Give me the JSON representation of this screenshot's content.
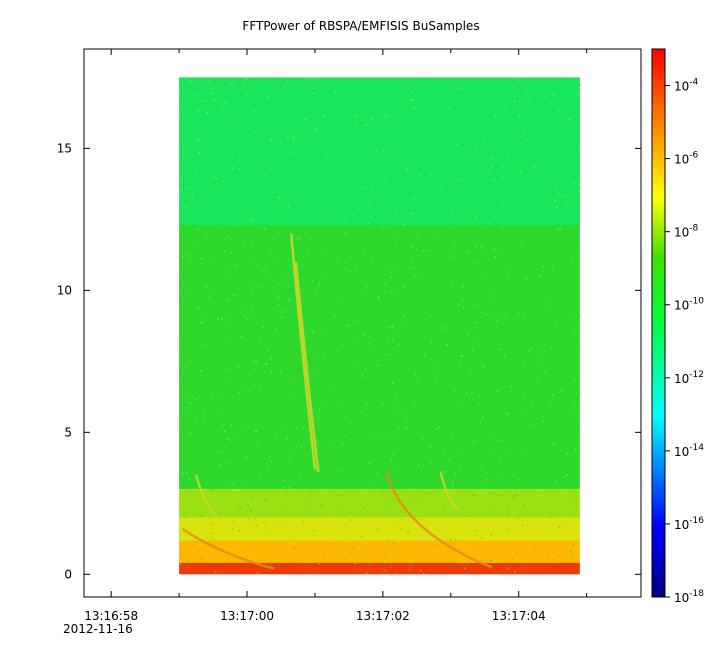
{
  "chart_data": {
    "type": "heatmap",
    "title": "FFTPower of RBSPA/EMFISIS  BuSamples",
    "xlabel": "",
    "ylabel": "",
    "x_ticks": [
      "13:16:58",
      "13:17:00",
      "13:17:02",
      "13:17:04"
    ],
    "x_date_label": "2012-11-16",
    "xlim": [
      "13:16:57.6",
      "13:17:05.8"
    ],
    "data_time_range": [
      "13:16:59.0",
      "13:17:04.9"
    ],
    "y_ticks": [
      0,
      5,
      10,
      15
    ],
    "ylim": [
      -0.8,
      18.5
    ],
    "data_y_range": [
      0,
      17.5
    ],
    "colorbar": {
      "scale": "log",
      "range": [
        1e-18,
        0.001
      ],
      "tick_bases": [
        "10",
        "10",
        "10",
        "10",
        "10",
        "10",
        "10",
        "10"
      ],
      "tick_exponents": [
        "-4",
        "-6",
        "-8",
        "-10",
        "-12",
        "-14",
        "-16",
        "-18"
      ],
      "tick_values": [
        0.0001,
        1e-06,
        1e-08,
        1e-10,
        1e-12,
        1e-14,
        1e-16,
        1e-18
      ],
      "colormap": "rainbow (blue-cyan-green-yellow-red)"
    },
    "bands": [
      {
        "y_range": [
          12.3,
          17.5
        ],
        "power": 1e-12,
        "color": "#19e65a"
      },
      {
        "y_range": [
          3.0,
          12.3
        ],
        "power": 1e-10,
        "color": "#2ed82c"
      },
      {
        "y_range": [
          2.0,
          3.0
        ],
        "power": 1e-09,
        "color": "#9be013"
      },
      {
        "y_range": [
          1.2,
          2.0
        ],
        "power": 1e-08,
        "color": "#d8e40c"
      },
      {
        "y_range": [
          0.4,
          1.2
        ],
        "power": 1e-07,
        "color": "#ffb800"
      },
      {
        "y_range": [
          0.0,
          0.4
        ],
        "power": 1e-05,
        "color": "#ee3a08"
      }
    ],
    "features": [
      {
        "kind": "chorus-streak",
        "points": [
          [
            "13:17:00.65",
            12.0
          ],
          [
            "13:17:00.80",
            8.0
          ],
          [
            "13:17:01.00",
            3.7
          ]
        ]
      },
      {
        "kind": "chorus-streak",
        "points": [
          [
            "13:17:00.72",
            11.0
          ],
          [
            "13:17:00.88",
            7.0
          ],
          [
            "13:17:01.05",
            3.6
          ]
        ]
      },
      {
        "kind": "whistler-arc",
        "points": [
          [
            "13:17:02.05",
            3.6
          ],
          [
            "13:17:02.30",
            1.5
          ],
          [
            "13:17:03.60",
            0.25
          ]
        ]
      },
      {
        "kind": "whistler-arc",
        "points": [
          [
            "13:16:59.05",
            1.6
          ],
          [
            "13:16:59.60",
            0.7
          ],
          [
            "13:17:00.40",
            0.2
          ]
        ]
      },
      {
        "kind": "hook",
        "points": [
          [
            "13:16:59.25",
            3.5
          ],
          [
            "13:16:59.35",
            2.6
          ],
          [
            "13:16:59.55",
            2.0
          ]
        ]
      },
      {
        "kind": "hook",
        "points": [
          [
            "13:17:02.85",
            3.6
          ],
          [
            "13:17:02.95",
            2.6
          ],
          [
            "13:17:03.10",
            2.3
          ]
        ]
      }
    ]
  }
}
